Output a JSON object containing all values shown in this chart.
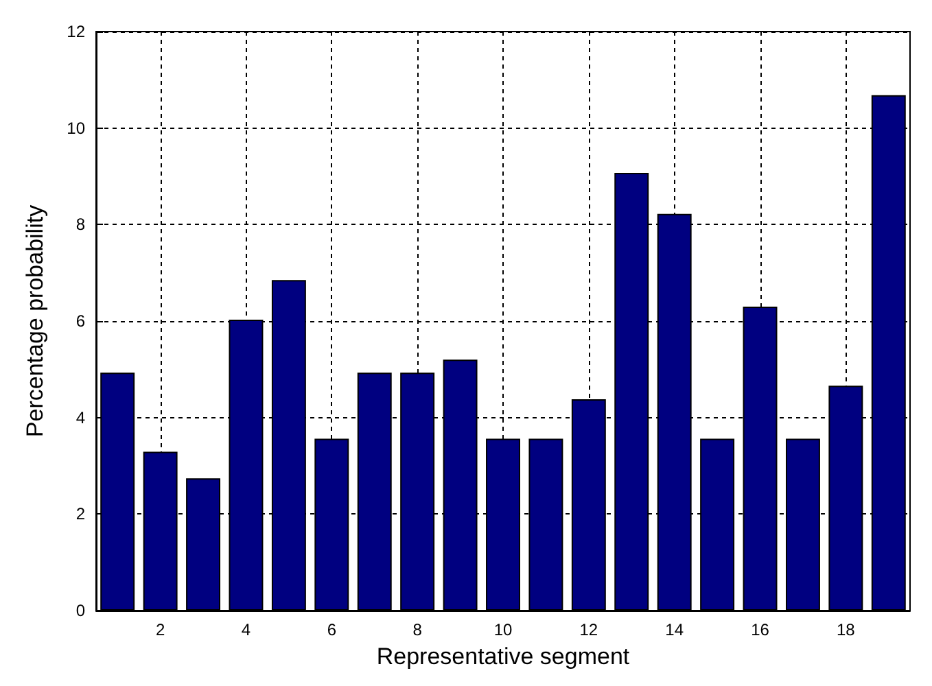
{
  "chart_data": {
    "type": "bar",
    "xlabel": "Representative segment",
    "ylabel": "Percentage probability",
    "x": [
      1,
      2,
      3,
      4,
      5,
      6,
      7,
      8,
      9,
      10,
      11,
      12,
      13,
      14,
      15,
      16,
      17,
      18,
      19
    ],
    "values": [
      4.93,
      3.29,
      2.74,
      6.03,
      6.85,
      3.56,
      4.93,
      4.93,
      5.2,
      3.56,
      3.56,
      4.38,
      9.07,
      8.22,
      3.56,
      6.3,
      3.56,
      4.66,
      10.68
    ],
    "color": "#000080",
    "xlim": [
      0.5,
      19.5
    ],
    "xticks": [
      2,
      4,
      6,
      8,
      10,
      12,
      14,
      16,
      18
    ],
    "ylim": [
      0,
      12
    ],
    "yticks": [
      0,
      2,
      4,
      6,
      8,
      10,
      12
    ],
    "grid": true
  }
}
